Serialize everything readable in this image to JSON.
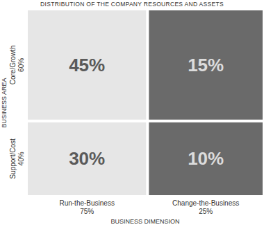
{
  "chart_data": {
    "type": "matrix",
    "title": "DISTRIBUTION OF THE COMPANY RESOURCES AND ASSETS",
    "x_label": "BUSINESS DIMENSION",
    "y_label": "BUSINESS AREA",
    "columns": [
      "Run-the-Business",
      "Change-the-Business"
    ],
    "column_values": [
      75,
      25
    ],
    "column_value_labels": [
      "75%",
      "25%"
    ],
    "rows": [
      "Core/Growth",
      "Support/Cost"
    ],
    "row_values": [
      60,
      40
    ],
    "row_value_labels": [
      "60%",
      "40%"
    ],
    "values": [
      [
        45,
        15
      ],
      [
        30,
        10
      ]
    ],
    "value_labels": [
      [
        "45%",
        "15%"
      ],
      [
        "30%",
        "10%"
      ]
    ],
    "colors": [
      [
        "#e6e6e6",
        "#6a6a6a"
      ],
      [
        "#e6e6e6",
        "#6a6a6a"
      ]
    ],
    "data_labels": true
  }
}
